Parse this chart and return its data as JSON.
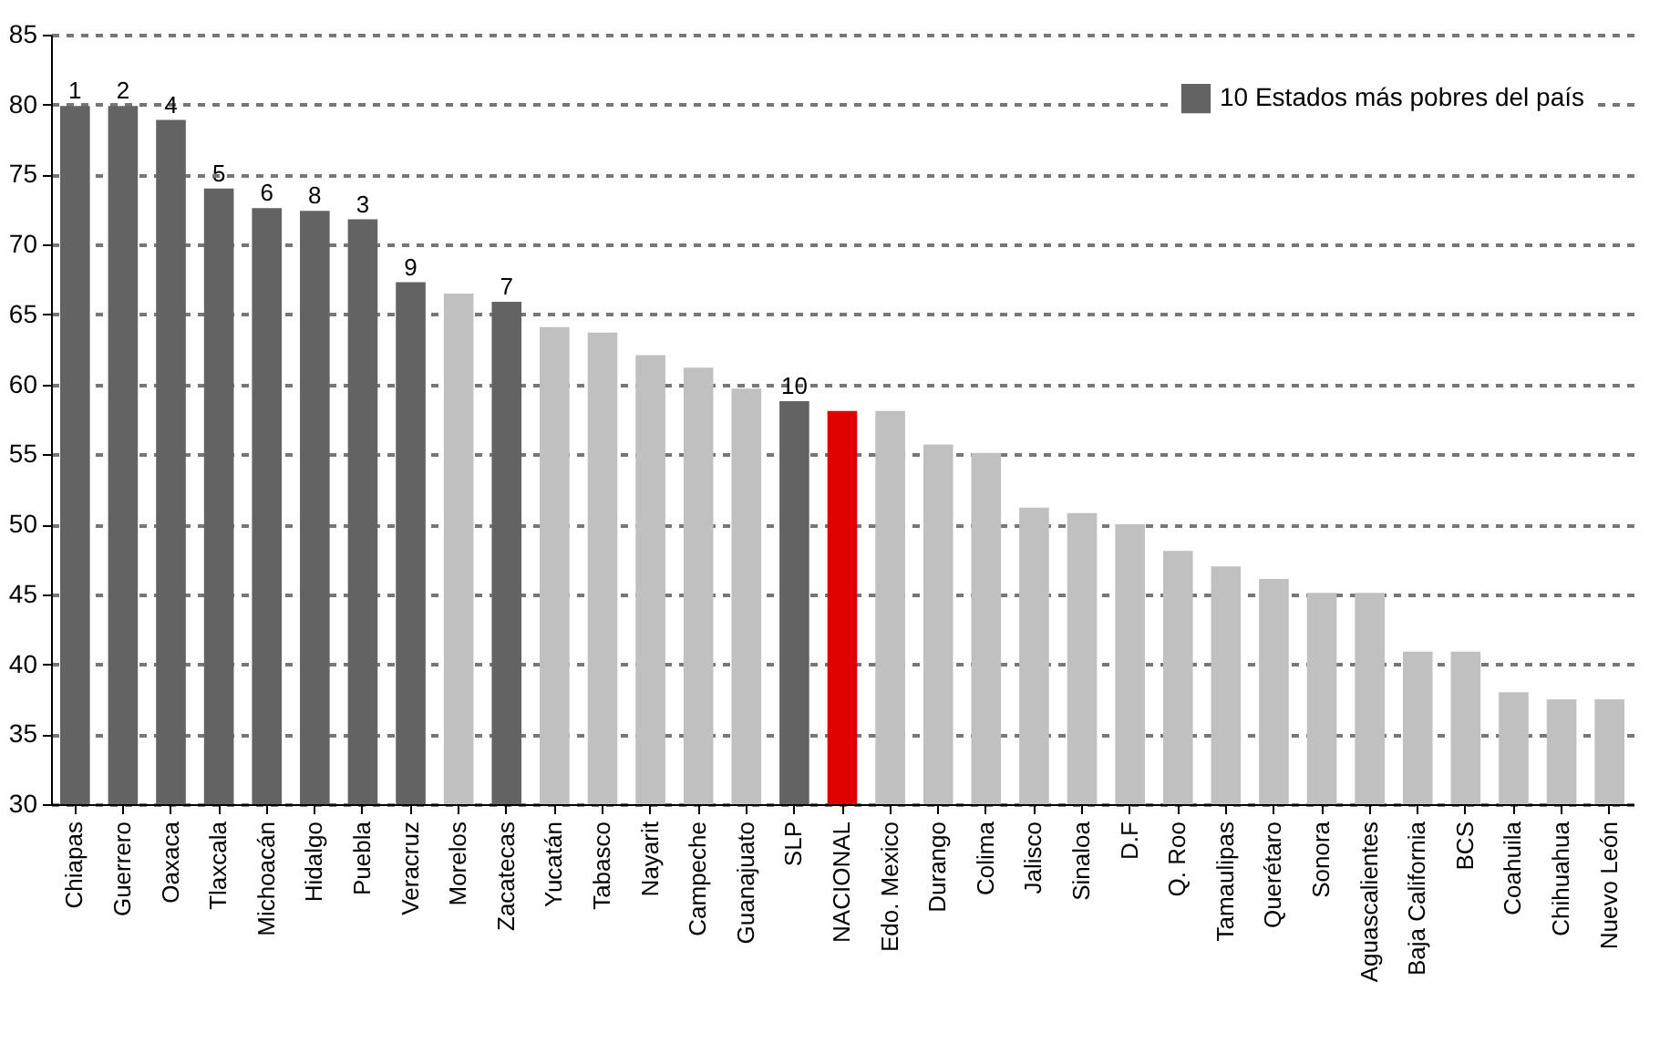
{
  "chart_data": {
    "type": "bar",
    "categories": [
      "Chiapas",
      "Guerrero",
      "Oaxaca",
      "Tlaxcala",
      "Michoacán",
      "Hidalgo",
      "Puebla",
      "Veracruz",
      "Morelos",
      "Zacatecas",
      "Yucatán",
      "Tabasco",
      "Nayarit",
      "Campeche",
      "Guanajuato",
      "SLP",
      "NACIONAL",
      "Edo. Mexico",
      "Durango",
      "Colima",
      "Jalisco",
      "Sinaloa",
      "D.F",
      "Q. Roo",
      "Tamaulipas",
      "Querétaro",
      "Sonora",
      "Aguascalientes",
      "Baja California",
      "BCS",
      "Coahuila",
      "Chihuahua",
      "Nuevo León"
    ],
    "series": [
      {
        "name": "10 Estados más pobres del país",
        "color": "#636363",
        "values": [
          79.9,
          79.9,
          78.9,
          74.0,
          72.6,
          72.4,
          71.8,
          67.3,
          null,
          65.9,
          null,
          null,
          null,
          null,
          null,
          58.8,
          null,
          null,
          null,
          null,
          null,
          null,
          null,
          null,
          null,
          null,
          null,
          null,
          null,
          null,
          null,
          null,
          null
        ]
      },
      {
        "color": "#c0c0c0",
        "values": [
          null,
          null,
          null,
          null,
          null,
          null,
          null,
          null,
          66.5,
          null,
          64.1,
          63.7,
          62.1,
          61.2,
          59.7,
          null,
          null,
          58.1,
          55.7,
          55.1,
          51.2,
          50.8,
          50.0,
          48.1,
          47.0,
          46.1,
          45.1,
          45.1,
          40.9,
          40.9,
          38.0,
          37.5,
          37.5
        ]
      },
      {
        "color": "#e00000",
        "values": [
          null,
          null,
          null,
          null,
          null,
          null,
          null,
          null,
          null,
          null,
          null,
          null,
          null,
          null,
          null,
          null,
          58.1,
          null,
          null,
          null,
          null,
          null,
          null,
          null,
          null,
          null,
          null,
          null,
          null,
          null,
          null,
          null,
          null
        ]
      }
    ],
    "annotations": [
      {
        "text": "1",
        "x": "Chiapas",
        "y": 79.9
      },
      {
        "text": "2",
        "x": "Guerrero",
        "y": 79.9
      },
      {
        "text": "4",
        "x": "Oaxaca",
        "y": 78.9
      },
      {
        "text": "5",
        "x": "Tlaxcala",
        "y": 74.0
      },
      {
        "text": "6",
        "x": "Michoacán",
        "y": 72.6
      },
      {
        "text": "8",
        "x": "Hidalgo",
        "y": 72.4
      },
      {
        "text": "3",
        "x": "Puebla",
        "y": 71.8
      },
      {
        "text": "9",
        "x": "Veracruz",
        "y": 67.3
      },
      {
        "text": "7",
        "x": "Zacatecas",
        "y": 65.9
      },
      {
        "text": "10",
        "x": "SLP",
        "y": 58.8
      }
    ],
    "ylim": [
      30,
      85
    ],
    "yticks": [
      30,
      35,
      40,
      45,
      50,
      55,
      60,
      65,
      70,
      75,
      80,
      85
    ],
    "grid": "y",
    "legend": "top right"
  }
}
